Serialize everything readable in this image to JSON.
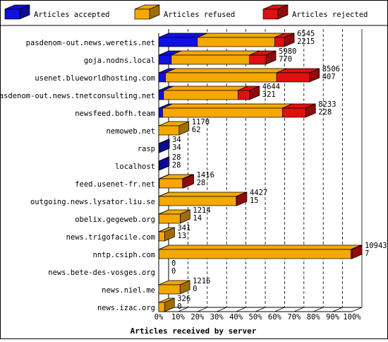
{
  "chart_data": {
    "type": "bar",
    "stacked": true,
    "orientation": "horizontal",
    "xlabel": "Articles received by server",
    "xticks": [
      "0%",
      "10%",
      "20%",
      "30%",
      "40%",
      "50%",
      "60%",
      "70%",
      "80%",
      "90%",
      "100%"
    ],
    "xlim": [
      0,
      100
    ],
    "legend_position": "top",
    "series": [
      {
        "name": "Articles accepted",
        "color": "#1010e0"
      },
      {
        "name": "Articles refused",
        "color": "#f5a800"
      },
      {
        "name": "Articles rejected",
        "color": "#e01010"
      }
    ],
    "categories": [
      "pasdenom-out.news.weretis.net",
      "goja.nodns.local",
      "usenet.blueworldhosting.com",
      "pasdenom-out.news.tnetconsulting.net",
      "newsfeed.bofh.team",
      "nemoweb.net",
      "rasp",
      "localhost",
      "feed.usenet-fr.net",
      "outgoing.news.lysator.liu.se",
      "obelix.gegeweb.org",
      "news.trigofacile.com",
      "nntp.csiph.com",
      "news.bete-des-vosges.org",
      "news.niel.me",
      "news.izac.org"
    ],
    "rows": [
      {
        "label": "pasdenom-out.news.weretis.net",
        "total": "6545",
        "accepted": "2215",
        "pct": [
          20,
          40,
          5
        ]
      },
      {
        "label": "goja.nodns.local",
        "total": "5980",
        "accepted": "770",
        "pct": [
          6.5,
          40.5,
          8.5
        ]
      },
      {
        "label": "usenet.blueworldhosting.com",
        "total": "8506",
        "accepted": "407",
        "pct": [
          3.5,
          57.5,
          17
        ]
      },
      {
        "label": "pasdenom-out.news.tnetconsulting.net",
        "total": "4644",
        "accepted": "321",
        "pct": [
          2.5,
          38.5,
          6
        ]
      },
      {
        "label": "newsfeed.bofh.team",
        "total": "8233",
        "accepted": "228",
        "pct": [
          2,
          62,
          12
        ]
      },
      {
        "label": "nemoweb.net",
        "total": "1170",
        "accepted": "62",
        "pct": [
          0,
          10.5,
          0
        ]
      },
      {
        "label": "rasp",
        "total": "34",
        "accepted": "34",
        "pct": [
          0.4,
          0,
          0
        ]
      },
      {
        "label": "localhost",
        "total": "28",
        "accepted": "28",
        "pct": [
          0.3,
          0,
          0
        ]
      },
      {
        "label": "feed.usenet-fr.net",
        "total": "1416",
        "accepted": "28",
        "pct": [
          0.3,
          12,
          0.7
        ]
      },
      {
        "label": "outgoing.news.lysator.liu.se",
        "total": "4427",
        "accepted": "15",
        "pct": [
          0.1,
          40,
          0.4
        ]
      },
      {
        "label": "obelix.gegeweb.org",
        "total": "1214",
        "accepted": "14",
        "pct": [
          0.1,
          11,
          0
        ]
      },
      {
        "label": "news.trigofacile.com",
        "total": "341",
        "accepted": "13",
        "pct": [
          0.1,
          3,
          0
        ]
      },
      {
        "label": "nntp.csiph.com",
        "total": "10943",
        "accepted": "7",
        "pct": [
          0.1,
          99.4,
          0.5
        ]
      },
      {
        "label": "news.bete-des-vosges.org",
        "total": "0",
        "accepted": "0",
        "pct": [
          0,
          0,
          0
        ]
      },
      {
        "label": "news.niel.me",
        "total": "1216",
        "accepted": "0",
        "pct": [
          0,
          11,
          0
        ]
      },
      {
        "label": "news.izac.org",
        "total": "326",
        "accepted": "0",
        "pct": [
          0,
          3,
          0
        ]
      }
    ]
  }
}
